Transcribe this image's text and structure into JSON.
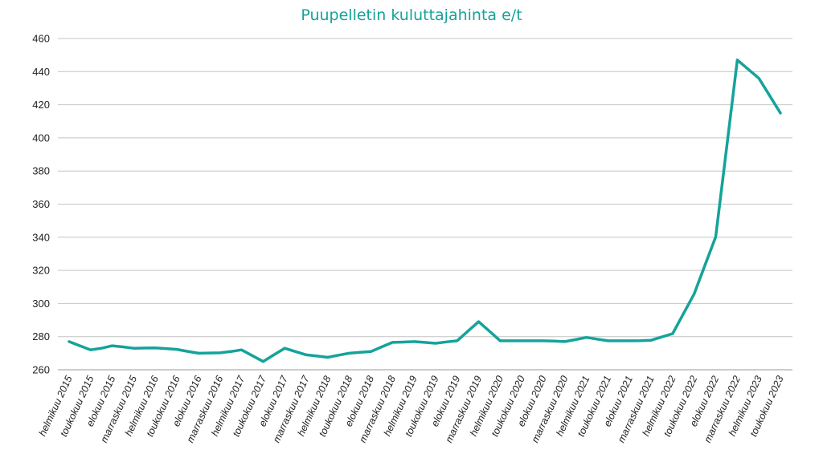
{
  "chart_data": {
    "type": "line",
    "title": "Puupelletin kuluttajahinta e/t",
    "xlabel": "",
    "ylabel": "",
    "ylim": [
      260,
      460
    ],
    "yticks": [
      260,
      280,
      300,
      320,
      340,
      360,
      380,
      400,
      420,
      440,
      460
    ],
    "grid": true,
    "legend": "none",
    "line_color": "#14a39a",
    "categories": [
      "helmikuu 2015",
      "",
      "toukokuu 2015",
      "",
      "elokuu 2015",
      "",
      "marraskuu 2015",
      "",
      "helmikuu 2016",
      "",
      "toukokuu 2016",
      "",
      "elokuu 2016",
      "",
      "marraskuu 2016",
      "",
      "helmikuu 2017",
      "",
      "toukokuu 2017",
      "",
      "elokuu 2017",
      "",
      "marraskuu 2017",
      "",
      "helmikuu 2018",
      "",
      "toukokuu 2018",
      "",
      "elokuu 2018",
      "",
      "marraskuu 2018",
      "",
      "helmikuu 2019",
      "",
      "toukokuu 2019",
      "",
      "elokuu 2019",
      "",
      "marraskuu 2019",
      "",
      "helmikuu 2020",
      "",
      "toukokuu 2020",
      "",
      "elokuu 2020",
      "",
      "marraskuu 2020",
      "",
      "helmikuu 2021",
      "",
      "toukokuu 2021",
      "",
      "elokuu 2021",
      "",
      "marraskuu 2021",
      "",
      "helmikuu 2022",
      "",
      "toukokuu 2022",
      "",
      "elokuu 2022",
      "",
      "marraskuu 2022",
      "",
      "helmikuu 2023",
      "",
      "toukokuu 2023"
    ],
    "series": [
      {
        "values": [
          277,
          274.5,
          272,
          273,
          274.5,
          273.8,
          273,
          273.1,
          273.2,
          272.8,
          272.3,
          271.1,
          270,
          270.1,
          270.2,
          271,
          272,
          268.5,
          265,
          269,
          273,
          271,
          269,
          268.3,
          267.5,
          268.8,
          270,
          270.5,
          271,
          273.8,
          276.5,
          276.7,
          277,
          276.5,
          276,
          276.8,
          277.5,
          283.3,
          289,
          283.3,
          277.5,
          277.5,
          277.5,
          277.5,
          277.5,
          277.3,
          277,
          278.2,
          279.5,
          278.5,
          277.5,
          277.5,
          277.5,
          277.6,
          277.8,
          279.8,
          281.8,
          293.8,
          305.8,
          323.1,
          340.3,
          393.7,
          447,
          441.5,
          436,
          425.5,
          415
        ]
      }
    ]
  }
}
